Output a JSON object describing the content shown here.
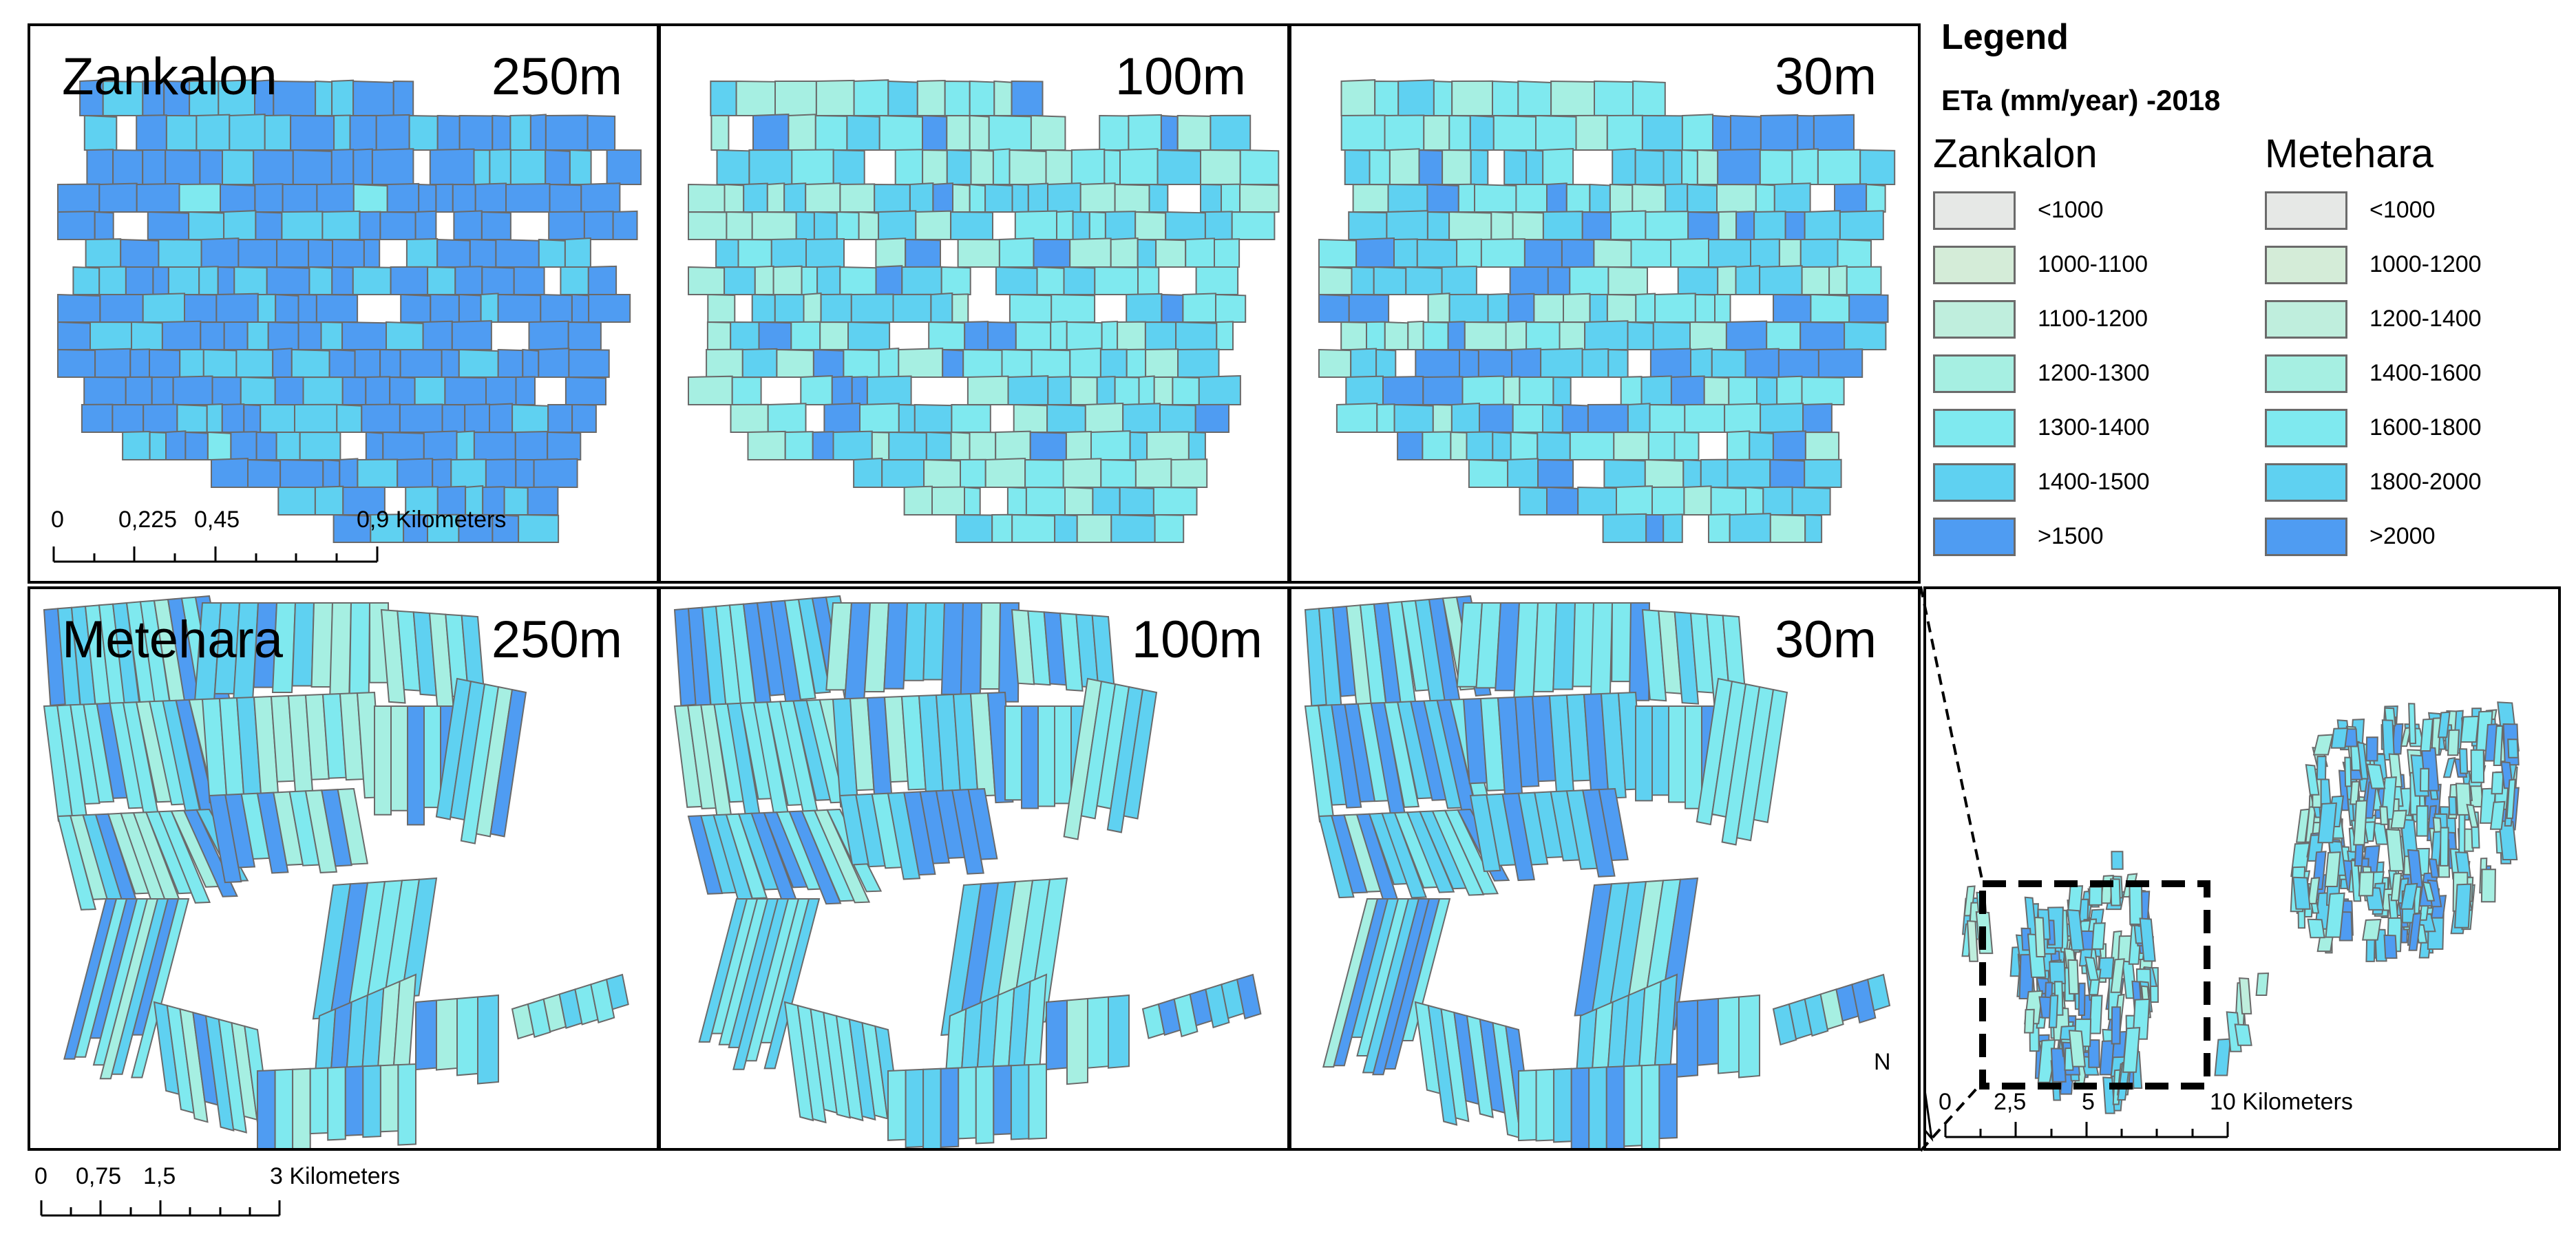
{
  "panels": {
    "zankalon_250": {
      "site": "Zankalon",
      "res": "250m"
    },
    "zankalon_100": {
      "res": "100m"
    },
    "zankalon_30": {
      "res": "30m"
    },
    "metehara_250": {
      "site": "Metehara",
      "res": "250m"
    },
    "metehara_100": {
      "res": "100m"
    },
    "metehara_30": {
      "res": "30m"
    }
  },
  "legend": {
    "title": "Legend",
    "subtitle": "ETa (mm/year) -2018",
    "zankalon": {
      "name": "Zankalon",
      "classes": [
        {
          "label": "<1000",
          "color": "#e6e8e6"
        },
        {
          "label": "1000-1100",
          "color": "#d4ecd8"
        },
        {
          "label": "1100-1200",
          "color": "#bfeedd"
        },
        {
          "label": "1200-1300",
          "color": "#a6efe2"
        },
        {
          "label": "1300-1400",
          "color": "#7fe9ef"
        },
        {
          "label": "1400-1500",
          "color": "#5fd1f1"
        },
        {
          "label": ">1500",
          "color": "#4f9cf2"
        }
      ]
    },
    "metehara": {
      "name": "Metehara",
      "classes": [
        {
          "label": "<1000",
          "color": "#e6e8e6"
        },
        {
          "label": "1000-1200",
          "color": "#d4ecd8"
        },
        {
          "label": "1200-1400",
          "color": "#bfeedd"
        },
        {
          "label": "1400-1600",
          "color": "#a6efe2"
        },
        {
          "label": "1600-1800",
          "color": "#7fe9ef"
        },
        {
          "label": "1800-2000",
          "color": "#5fd1f1"
        },
        {
          "label": ">2000",
          "color": "#4f9cf2"
        }
      ]
    }
  },
  "scalebars": {
    "zankalon": {
      "labels": [
        "0",
        "0,225",
        "0,45",
        "0,9 Kilometers"
      ]
    },
    "metehara": {
      "labels": [
        "0",
        "0,75",
        "1,5",
        "3 Kilometers"
      ]
    },
    "overview": {
      "labels": [
        "0",
        "2,5",
        "5",
        "10 Kilometers"
      ]
    }
  },
  "north_arrow": {
    "label": "N"
  }
}
